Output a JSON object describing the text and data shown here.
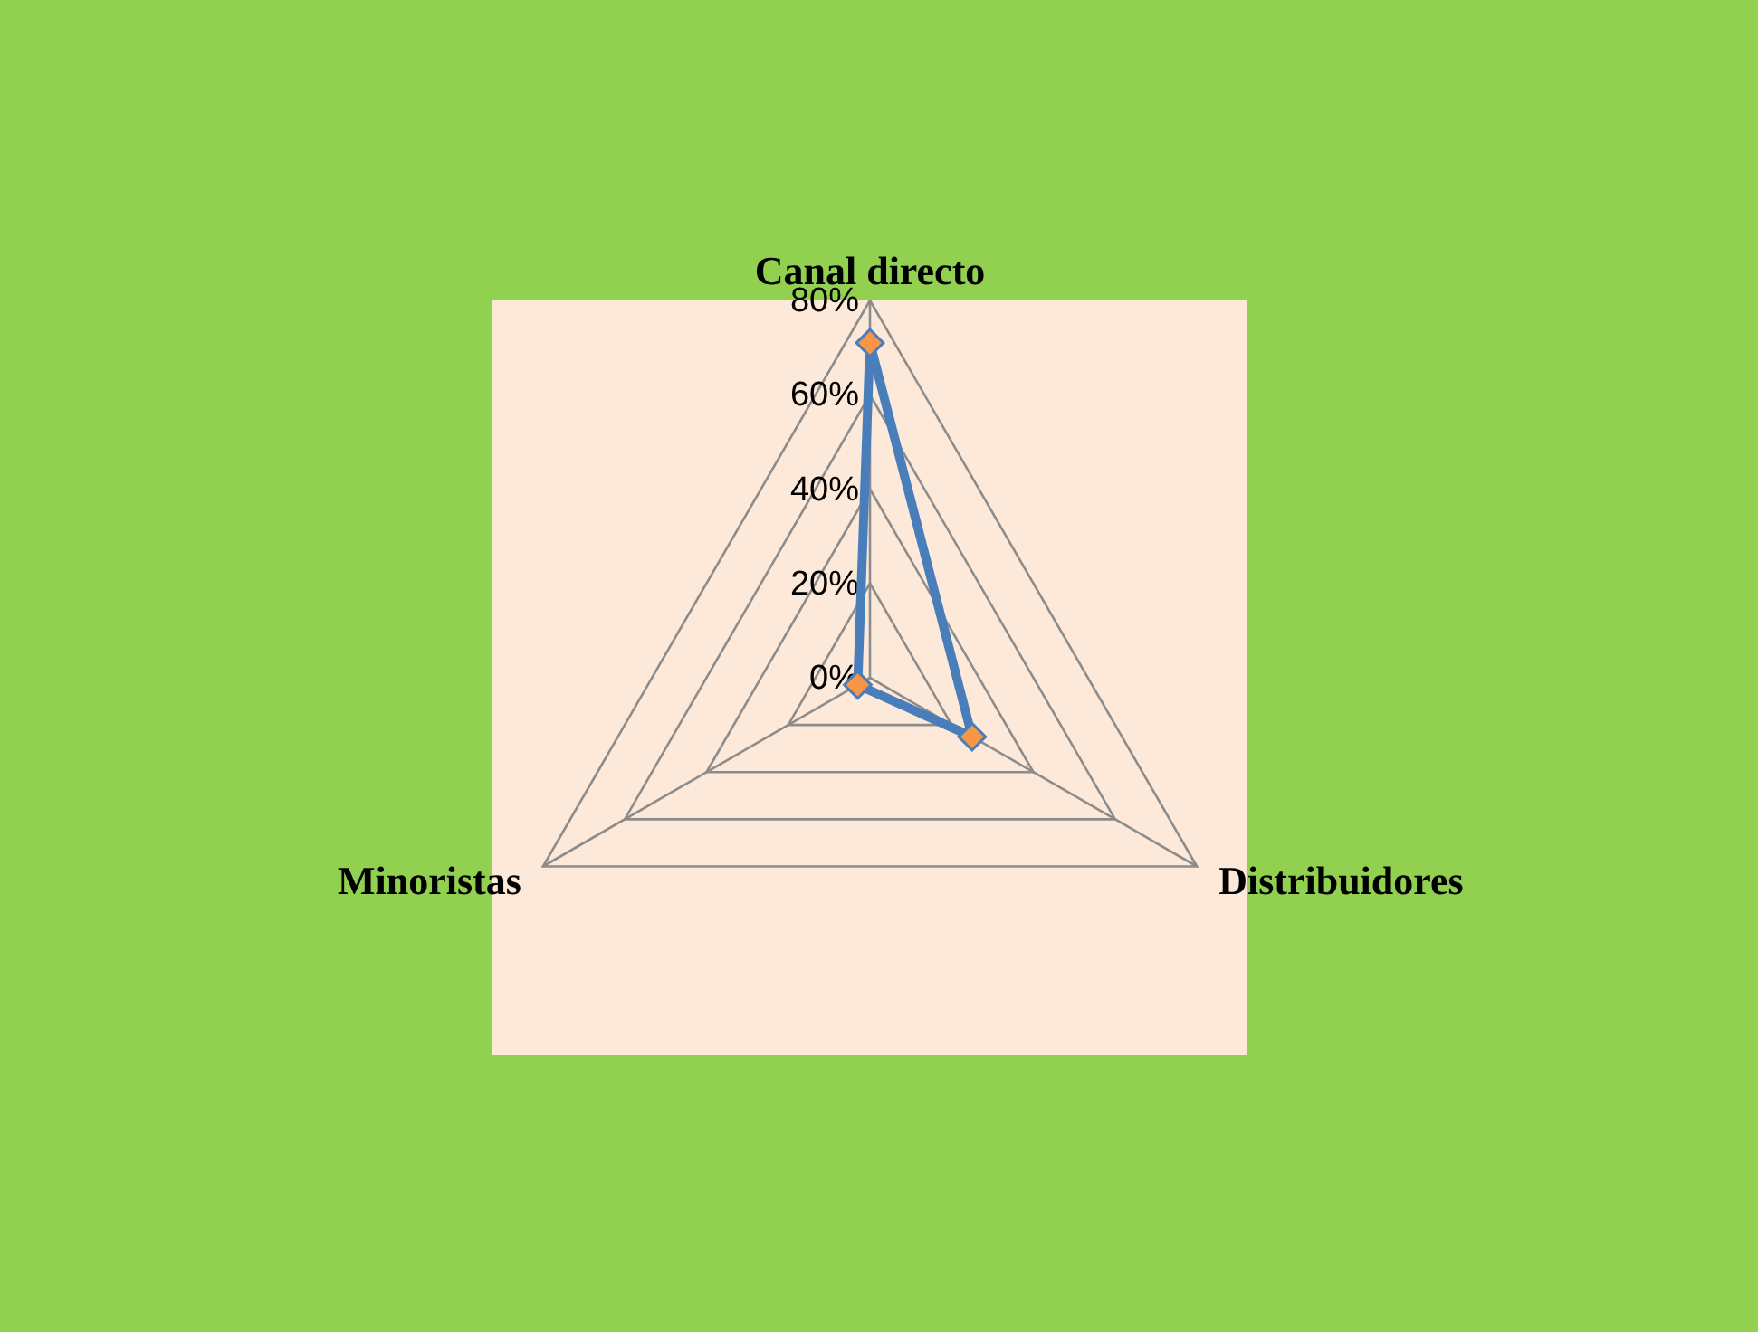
{
  "chart_data": {
    "type": "radar",
    "categories": [
      "Canal directo",
      "Distribuidores",
      "Minoristas"
    ],
    "series": [
      {
        "color": "#4a7ebb",
        "values": [
          71,
          25,
          3
        ]
      }
    ],
    "ylim": [
      0,
      80
    ],
    "yticks": [
      {
        "value": 0,
        "label": "0%"
      },
      {
        "value": 20,
        "label": "20%"
      },
      {
        "value": 40,
        "label": "40%"
      },
      {
        "value": 60,
        "label": "60%"
      },
      {
        "value": 80,
        "label": "80%"
      }
    ],
    "grid": true,
    "marker": "diamond"
  }
}
